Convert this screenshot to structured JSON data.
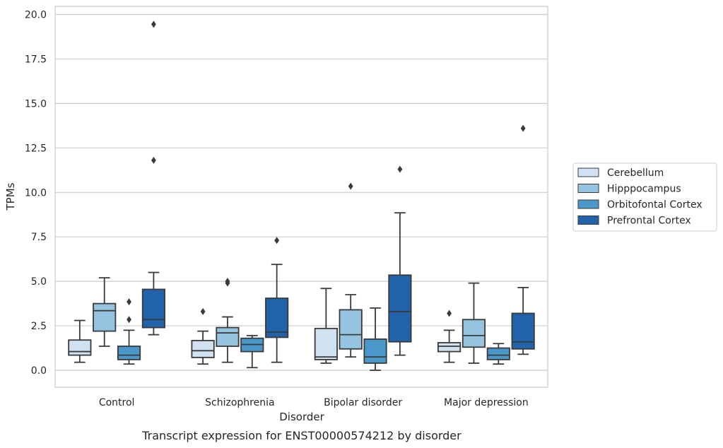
{
  "chart_data": {
    "type": "box",
    "title": "",
    "caption": "Transcript expression for ENST00000574212 by disorder",
    "xlabel": "Disorder",
    "ylabel": "TPMs",
    "ylim": [
      -0.9,
      20.4
    ],
    "yticks": [
      "0.0",
      "2.5",
      "5.0",
      "7.5",
      "10.0",
      "12.5",
      "15.0",
      "17.5",
      "20.0"
    ],
    "ytick_values": [
      0,
      2.5,
      5,
      7.5,
      10,
      12.5,
      15,
      17.5,
      20
    ],
    "grid": "horizontal",
    "legend_position": "right",
    "categories": [
      "Control",
      "Schizophrenia",
      "Bipolar disorder",
      "Major depression"
    ],
    "series": [
      {
        "name": "Cerebellum",
        "color": "#d0e1f2",
        "boxes": [
          {
            "whislo": 0.45,
            "q1": 0.85,
            "med": 1.05,
            "q3": 1.7,
            "whishi": 2.8,
            "fliers": []
          },
          {
            "whislo": 0.35,
            "q1": 0.72,
            "med": 1.1,
            "q3": 1.67,
            "whishi": 2.2,
            "fliers": [
              3.3
            ]
          },
          {
            "whislo": 0.4,
            "q1": 0.6,
            "med": 0.75,
            "q3": 2.35,
            "whishi": 4.6,
            "fliers": []
          },
          {
            "whislo": 0.45,
            "q1": 1.05,
            "med": 1.35,
            "q3": 1.55,
            "whishi": 2.25,
            "fliers": [
              3.2
            ]
          }
        ]
      },
      {
        "name": "Hipppocampus",
        "color": "#94c4df",
        "boxes": [
          {
            "whislo": 1.35,
            "q1": 2.2,
            "med": 3.35,
            "q3": 3.75,
            "whishi": 5.2,
            "fliers": []
          },
          {
            "whislo": 0.45,
            "q1": 1.35,
            "med": 2.1,
            "q3": 2.4,
            "whishi": 3.0,
            "fliers": [
              4.9,
              5.0
            ]
          },
          {
            "whislo": 0.75,
            "q1": 1.2,
            "med": 2.0,
            "q3": 3.4,
            "whishi": 4.25,
            "fliers": [
              10.35
            ]
          },
          {
            "whislo": 0.4,
            "q1": 1.3,
            "med": 1.95,
            "q3": 2.85,
            "whishi": 4.9,
            "fliers": []
          }
        ]
      },
      {
        "name": "Orbitofontal Cortex",
        "color": "#4a98c9",
        "boxes": [
          {
            "whislo": 0.35,
            "q1": 0.6,
            "med": 0.85,
            "q3": 1.35,
            "whishi": 2.25,
            "fliers": [
              2.85,
              3.85
            ]
          },
          {
            "whislo": 0.15,
            "q1": 1.05,
            "med": 1.45,
            "q3": 1.8,
            "whishi": 1.95,
            "fliers": []
          },
          {
            "whislo": 0.0,
            "q1": 0.4,
            "med": 0.75,
            "q3": 1.75,
            "whishi": 3.5,
            "fliers": []
          },
          {
            "whislo": 0.35,
            "q1": 0.6,
            "med": 0.85,
            "q3": 1.25,
            "whishi": 1.5,
            "fliers": []
          }
        ]
      },
      {
        "name": "Prefrontal Cortex",
        "color": "#2163aa",
        "boxes": [
          {
            "whislo": 2.0,
            "q1": 2.4,
            "med": 2.85,
            "q3": 4.55,
            "whishi": 5.5,
            "fliers": [
              11.8,
              19.45
            ]
          },
          {
            "whislo": 0.45,
            "q1": 1.85,
            "med": 2.15,
            "q3": 4.05,
            "whishi": 5.95,
            "fliers": [
              7.3
            ]
          },
          {
            "whislo": 0.85,
            "q1": 1.6,
            "med": 3.3,
            "q3": 5.35,
            "whishi": 8.85,
            "fliers": [
              11.3
            ]
          },
          {
            "whislo": 0.9,
            "q1": 1.2,
            "med": 1.6,
            "q3": 3.2,
            "whishi": 4.65,
            "fliers": [
              13.6
            ]
          }
        ]
      }
    ]
  }
}
